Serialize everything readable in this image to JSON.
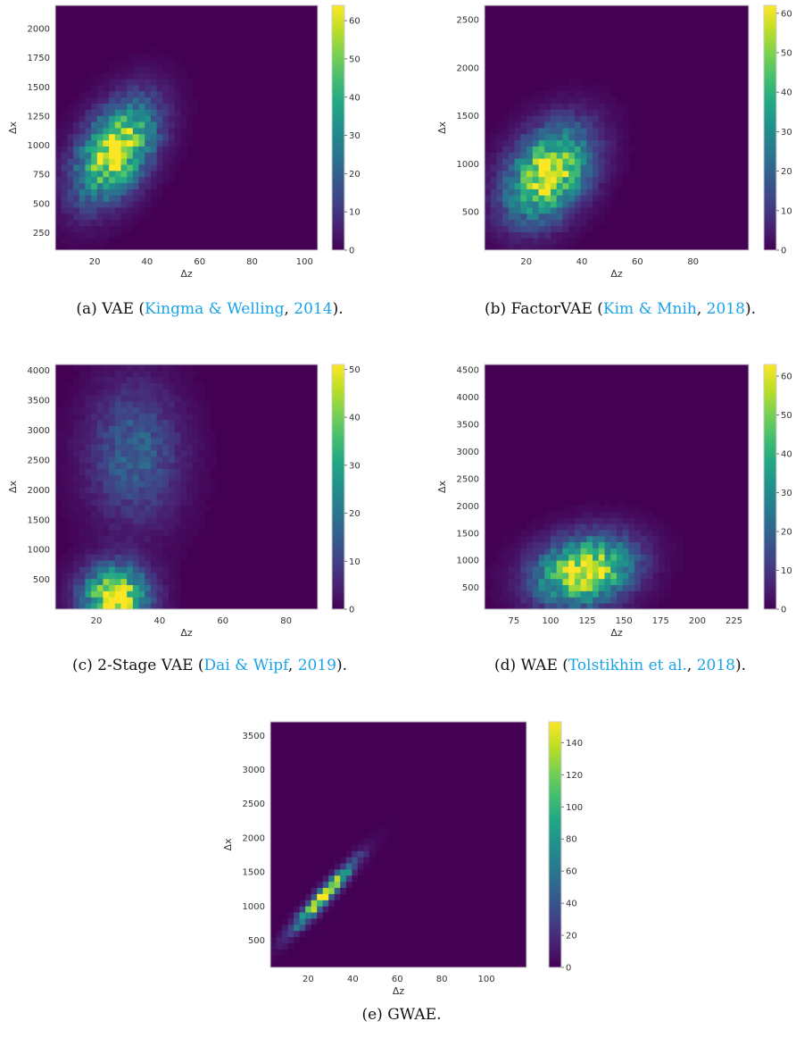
{
  "chart_data": [
    {
      "type": "heatmap",
      "xlabel": "Δz",
      "ylabel": "Δx",
      "xlim": [
        5,
        105
      ],
      "ylim": [
        100,
        2200
      ],
      "xticks": [
        20,
        40,
        60,
        80,
        100
      ],
      "yticks": [
        250,
        500,
        750,
        1000,
        1250,
        1500,
        1750,
        2000
      ],
      "colorbar": {
        "range": [
          0,
          64
        ],
        "ticks": [
          0,
          10,
          20,
          30,
          40,
          50,
          60
        ]
      },
      "distribution": {
        "peak_x": 28,
        "peak_y": 950,
        "sd_x": 10,
        "sd_y": 280,
        "correlation": 0.45,
        "max_count": 63
      },
      "caption": {
        "label": "(a) VAE (",
        "cite_name": "Kingma & Welling",
        "sep": ", ",
        "cite_year": "2014",
        "end": ")."
      }
    },
    {
      "type": "heatmap",
      "xlabel": "Δz",
      "ylabel": "Δx",
      "xlim": [
        5,
        100
      ],
      "ylim": [
        100,
        2650
      ],
      "xticks": [
        20,
        40,
        60,
        80
      ],
      "yticks": [
        500,
        1000,
        1500,
        2000,
        2500
      ],
      "colorbar": {
        "range": [
          0,
          62
        ],
        "ticks": [
          0,
          10,
          20,
          30,
          40,
          50,
          60
        ]
      },
      "distribution": {
        "peak_x": 28,
        "peak_y": 900,
        "sd_x": 10,
        "sd_y": 320,
        "correlation": 0.35,
        "max_count": 62
      },
      "caption": {
        "label": "(b) FactorVAE (",
        "cite_name": "Kim & Mnih",
        "sep": ", ",
        "cite_year": "2018",
        "end": ")."
      }
    },
    {
      "type": "heatmap",
      "xlabel": "Δz",
      "ylabel": "Δx",
      "xlim": [
        7,
        90
      ],
      "ylim": [
        0,
        4100
      ],
      "xticks": [
        20,
        40,
        60,
        80
      ],
      "yticks": [
        500,
        1000,
        1500,
        2000,
        2500,
        3000,
        3500,
        4000
      ],
      "colorbar": {
        "range": [
          0,
          51
        ],
        "ticks": [
          0,
          10,
          20,
          30,
          40,
          50
        ]
      },
      "distribution": {
        "peak_x": 26,
        "peak_y": 200,
        "sd_x": 7,
        "sd_y": 350,
        "correlation": 0.0,
        "max_count": 51,
        "secondary": {
          "peak_x": 32,
          "peak_y": 2600,
          "sd_x": 10,
          "sd_y": 800,
          "max_count": 16
        }
      },
      "caption": {
        "label": "(c) 2-Stage VAE (",
        "cite_name": "Dai & Wipf",
        "sep": ", ",
        "cite_year": "2019",
        "end": ")."
      }
    },
    {
      "type": "heatmap",
      "xlabel": "Δz",
      "ylabel": "Δx",
      "xlim": [
        55,
        235
      ],
      "ylim": [
        100,
        4600
      ],
      "xticks": [
        75,
        100,
        125,
        150,
        175,
        200,
        225
      ],
      "yticks": [
        500,
        1000,
        1500,
        2000,
        2500,
        3000,
        3500,
        4000,
        4500
      ],
      "colorbar": {
        "range": [
          0,
          63
        ],
        "ticks": [
          0,
          10,
          20,
          30,
          40,
          50,
          60
        ]
      },
      "distribution": {
        "peak_x": 123,
        "peak_y": 800,
        "sd_x": 22,
        "sd_y": 420,
        "correlation": 0.2,
        "max_count": 62
      },
      "caption": {
        "label": "(d) WAE (",
        "cite_name": "Tolstikhin et al.",
        "sep": ", ",
        "cite_year": "2018",
        "end": ")."
      }
    },
    {
      "type": "heatmap",
      "xlabel": "Δz",
      "ylabel": "Δx",
      "xlim": [
        3,
        118
      ],
      "ylim": [
        100,
        3700
      ],
      "xticks": [
        20,
        40,
        60,
        80,
        100
      ],
      "yticks": [
        500,
        1000,
        1500,
        2000,
        2500,
        3000,
        3500
      ],
      "colorbar": {
        "range": [
          0,
          153
        ],
        "ticks": [
          0,
          20,
          40,
          60,
          80,
          100,
          120,
          140
        ]
      },
      "distribution": {
        "peak_x": 27,
        "peak_y": 1150,
        "sd_x": 9,
        "sd_y": 320,
        "correlation": 0.95,
        "max_count": 150
      },
      "caption": {
        "label": "(e) GWAE.",
        "cite_name": "",
        "sep": "",
        "cite_year": "",
        "end": ""
      }
    }
  ]
}
